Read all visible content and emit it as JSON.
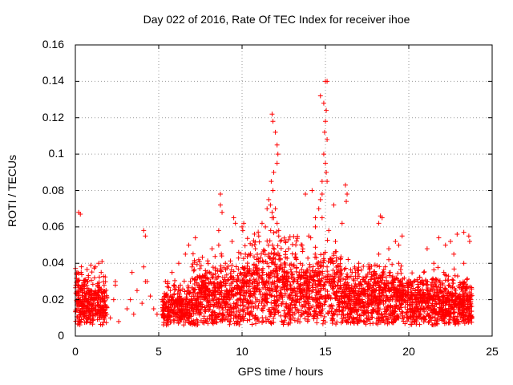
{
  "chart_data": {
    "type": "scatter",
    "title": "Day 022 of 2016, Rate Of TEC Index for receiver ihoe",
    "xlabel": "GPS time / hours",
    "ylabel": "ROTI / TECUs",
    "xlim": [
      0,
      25
    ],
    "ylim": [
      0,
      0.16
    ],
    "xticks": [
      "0",
      "5",
      "10",
      "15",
      "20",
      "25"
    ],
    "yticks": [
      "0",
      "0.02",
      "0.04",
      "0.06",
      "0.08",
      "0.1",
      "0.12",
      "0.14",
      "0.16"
    ],
    "grid": true,
    "marker": "+",
    "series_color": "#ff0000",
    "series": [
      {
        "x": [
          0.1,
          0.2,
          0.25,
          0.3,
          0.4,
          0.5,
          0.6,
          0.7,
          0.8,
          0.9,
          1.0,
          1.1,
          1.2,
          1.3,
          1.4,
          1.5,
          1.6,
          1.7,
          1.8,
          0.15,
          0.35,
          0.55,
          0.75,
          0.95,
          1.15,
          1.35,
          1.55,
          1.75,
          0.2,
          0.3,
          1.2,
          1.4,
          1.6,
          2.1,
          2.3,
          2.4,
          2.6,
          3.1,
          3.3,
          3.5,
          3.7,
          4.0,
          4.1,
          4.2,
          4.3,
          4.5,
          4.7,
          4.9,
          2.4,
          3.4,
          4.1,
          4.2,
          5.3,
          5.5,
          5.7,
          5.9,
          6.1,
          6.3,
          6.5,
          6.7,
          6.9,
          7.1,
          7.3,
          7.5,
          7.7,
          7.9,
          8.1,
          8.3,
          8.5,
          8.7,
          8.9,
          9.1,
          9.3,
          9.5,
          9.7,
          9.9,
          5.4,
          5.8,
          6.2,
          6.6,
          7.0,
          7.4,
          7.8,
          8.2,
          8.6,
          9.0,
          9.4,
          9.8,
          6.8,
          7.2,
          8.7,
          8.8,
          9.5,
          9.6,
          8.6,
          8.7,
          10.1,
          10.3,
          10.5,
          10.7,
          10.9,
          11.1,
          11.3,
          11.5,
          11.7,
          11.9,
          12.1,
          12.3,
          12.5,
          12.7,
          12.9,
          10.2,
          10.6,
          11.0,
          11.4,
          11.8,
          12.2,
          12.6,
          10.0,
          10.1,
          10.8,
          11.2,
          11.5,
          11.6,
          11.7,
          11.8,
          11.9,
          12.0,
          12.1,
          12.2,
          11.75,
          11.85,
          11.9,
          12.1,
          12.15,
          11.8,
          11.85,
          12.0,
          12.1,
          13.1,
          13.3,
          13.5,
          13.7,
          13.9,
          14.1,
          14.3,
          14.5,
          14.7,
          14.9,
          15.1,
          15.3,
          15.5,
          15.7,
          15.9,
          13.2,
          13.6,
          14.0,
          14.4,
          14.8,
          15.2,
          15.6,
          13.8,
          14.2,
          14.4,
          14.6,
          14.7,
          14.8,
          14.9,
          15.0,
          15.05,
          15.1,
          15.1,
          14.95,
          15.0,
          15.05,
          14.9,
          15.0,
          15.1,
          14.7,
          14.8,
          15.5,
          16.0,
          16.2,
          16.3,
          16.25,
          16.5,
          16.8,
          17.1,
          17.4,
          17.7,
          18.0,
          18.3,
          18.6,
          18.9,
          19.2,
          19.5,
          19.8,
          16.6,
          17.0,
          17.6,
          18.2,
          18.8,
          19.4,
          18.2,
          18.3,
          18.4,
          18.8,
          19.4,
          19.6,
          19.2,
          20.1,
          20.4,
          20.7,
          21.0,
          21.3,
          21.6,
          21.9,
          22.2,
          22.5,
          22.8,
          23.1,
          23.4,
          23.7,
          20.3,
          20.9,
          21.5,
          22.1,
          22.7,
          23.3,
          21.8,
          22.5,
          22.9,
          23.3,
          23.6,
          23.65,
          21.1,
          22.2
        ],
        "y": [
          0.015,
          0.02,
          0.013,
          0.025,
          0.018,
          0.012,
          0.022,
          0.016,
          0.01,
          0.02,
          0.014,
          0.018,
          0.025,
          0.012,
          0.017,
          0.021,
          0.013,
          0.016,
          0.011,
          0.03,
          0.035,
          0.028,
          0.03,
          0.025,
          0.032,
          0.028,
          0.035,
          0.022,
          0.068,
          0.067,
          0.038,
          0.04,
          0.041,
          0.01,
          0.02,
          0.03,
          0.008,
          0.015,
          0.02,
          0.012,
          0.025,
          0.018,
          0.058,
          0.055,
          0.03,
          0.022,
          0.015,
          0.012,
          0.028,
          0.035,
          0.038,
          0.03,
          0.02,
          0.015,
          0.025,
          0.018,
          0.012,
          0.028,
          0.02,
          0.015,
          0.03,
          0.022,
          0.018,
          0.026,
          0.02,
          0.016,
          0.03,
          0.024,
          0.02,
          0.028,
          0.018,
          0.025,
          0.032,
          0.022,
          0.028,
          0.02,
          0.03,
          0.035,
          0.04,
          0.045,
          0.038,
          0.042,
          0.036,
          0.048,
          0.05,
          0.04,
          0.052,
          0.046,
          0.05,
          0.054,
          0.072,
          0.068,
          0.065,
          0.062,
          0.058,
          0.078,
          0.025,
          0.03,
          0.022,
          0.035,
          0.028,
          0.032,
          0.03,
          0.04,
          0.035,
          0.045,
          0.038,
          0.042,
          0.03,
          0.035,
          0.028,
          0.045,
          0.05,
          0.055,
          0.06,
          0.065,
          0.058,
          0.052,
          0.06,
          0.062,
          0.048,
          0.062,
          0.07,
          0.075,
          0.072,
          0.068,
          0.065,
          0.07,
          0.062,
          0.055,
          0.085,
          0.08,
          0.09,
          0.095,
          0.1,
          0.122,
          0.118,
          0.112,
          0.105,
          0.025,
          0.03,
          0.022,
          0.035,
          0.028,
          0.032,
          0.03,
          0.04,
          0.035,
          0.045,
          0.038,
          0.042,
          0.03,
          0.035,
          0.028,
          0.045,
          0.05,
          0.055,
          0.06,
          0.065,
          0.058,
          0.052,
          0.078,
          0.08,
          0.065,
          0.07,
          0.075,
          0.085,
          0.1,
          0.095,
          0.09,
          0.085,
          0.108,
          0.112,
          0.118,
          0.124,
          0.128,
          0.14,
          0.14,
          0.132,
          0.078,
          0.072,
          0.062,
          0.083,
          0.078,
          0.074,
          0.02,
          0.025,
          0.03,
          0.022,
          0.028,
          0.025,
          0.032,
          0.028,
          0.035,
          0.025,
          0.03,
          0.022,
          0.035,
          0.04,
          0.038,
          0.045,
          0.042,
          0.04,
          0.062,
          0.066,
          0.065,
          0.048,
          0.05,
          0.055,
          0.052,
          0.015,
          0.02,
          0.025,
          0.018,
          0.022,
          0.02,
          0.025,
          0.018,
          0.022,
          0.02,
          0.018,
          0.025,
          0.02,
          0.03,
          0.035,
          0.04,
          0.035,
          0.045,
          0.04,
          0.054,
          0.052,
          0.056,
          0.057,
          0.055,
          0.052,
          0.048,
          0.05
        ]
      }
    ]
  }
}
